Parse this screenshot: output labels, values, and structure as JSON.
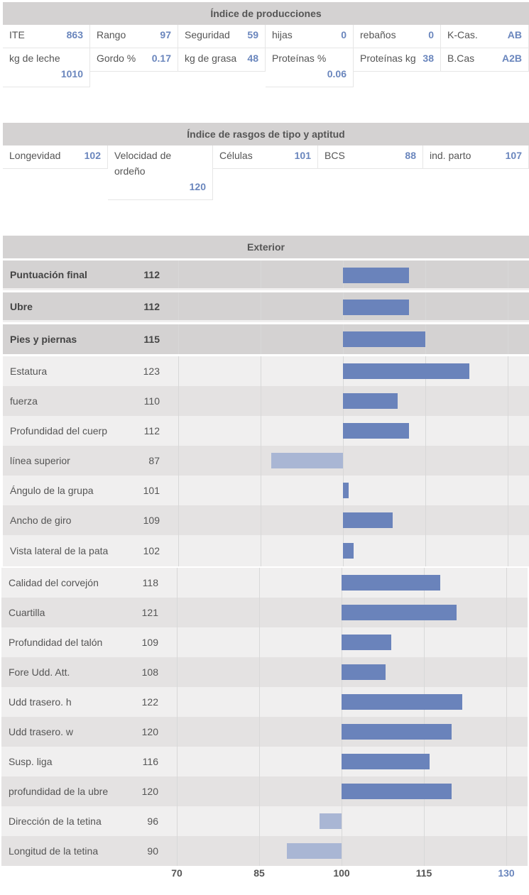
{
  "producciones": {
    "title": "Índice de producciones",
    "row1": [
      {
        "label": "ITE",
        "value": "863"
      },
      {
        "label": "Rango",
        "value": "97"
      },
      {
        "label": "Seguridad",
        "value": "59"
      },
      {
        "label": "hijas",
        "value": "0"
      },
      {
        "label": "rebaños",
        "value": "0"
      },
      {
        "label": "K-Cas.",
        "value": "AB"
      }
    ],
    "row2": [
      {
        "label": "kg de leche",
        "value": "1010"
      },
      {
        "label": "Gordo %",
        "value": "0.17"
      },
      {
        "label": "kg de grasa",
        "value": "48"
      },
      {
        "label": "Proteínas %",
        "value": "0.06"
      },
      {
        "label": "Proteínas kg",
        "value": "38"
      },
      {
        "label": "B.Cas",
        "value": "A2B"
      }
    ]
  },
  "tipo": {
    "title": "Índice de rasgos de tipo y aptitud",
    "items": [
      {
        "label": "Longevidad",
        "value": "102"
      },
      {
        "label": "Velocidad de ordeño",
        "value": "120"
      },
      {
        "label": "Células",
        "value": "101"
      },
      {
        "label": "BCS",
        "value": "88"
      },
      {
        "label": "ind. parto",
        "value": "107"
      }
    ]
  },
  "exterior": {
    "title": "Exterior",
    "axis_ticks": [
      "70",
      "85",
      "100",
      "115",
      "130"
    ],
    "colors": {
      "bar": "#6a83bb",
      "bar_below": "#a9b6d4",
      "value": "#6a86bd"
    }
  },
  "chart_data": {
    "type": "bar",
    "orientation": "horizontal",
    "baseline": 100,
    "xlim": [
      70,
      130
    ],
    "xticks": [
      70,
      85,
      100,
      115,
      130
    ],
    "categories": [
      "Puntuación final",
      "Ubre",
      "Pies y piernas",
      "Estatura",
      "fuerza",
      "Profundidad del cuerp",
      "línea superior",
      "Ángulo de la grupa",
      "Ancho de giro",
      "Vista lateral de la pata",
      "Calidad del corvejón",
      "Cuartilla",
      "Profundidad del talón",
      "Fore Udd. Att.",
      "Udd trasero. h",
      "Udd trasero. w",
      "Susp. liga",
      "profundidad de la ubre",
      "Dirección de la tetina",
      "Longitud de la tetina"
    ],
    "values": [
      112,
      112,
      115,
      123,
      110,
      112,
      87,
      101,
      109,
      102,
      118,
      121,
      109,
      108,
      122,
      120,
      116,
      120,
      96,
      90
    ],
    "bold_rows": [
      0,
      1,
      2
    ]
  }
}
